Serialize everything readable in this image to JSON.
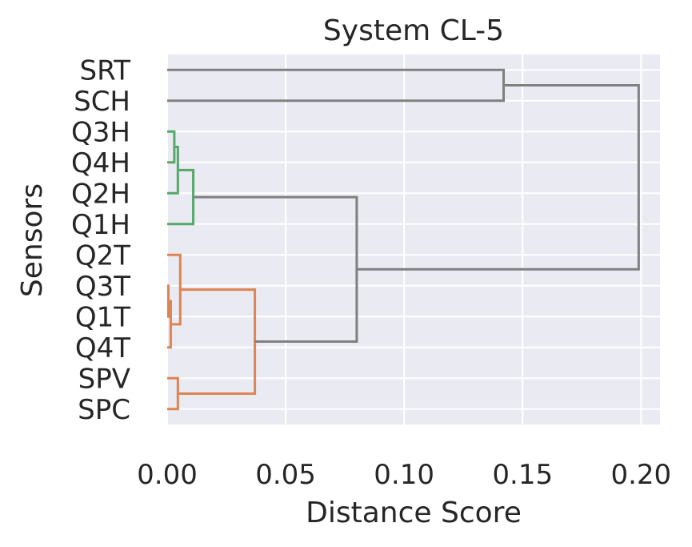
{
  "chart_data": {
    "type": "dendrogram",
    "orientation": "horizontal",
    "title": "System CL-5",
    "xlabel": "Distance Score",
    "ylabel": "Sensors",
    "xlim": [
      0,
      0.208
    ],
    "xticks": [
      "0.00",
      "0.05",
      "0.10",
      "0.15",
      "0.20"
    ],
    "xtick_values": [
      0,
      0.05,
      0.1,
      0.15,
      0.2
    ],
    "grid": true,
    "leaves": [
      "SRT",
      "SCH",
      "Q3H",
      "Q4H",
      "Q2H",
      "Q1H",
      "Q2T",
      "Q3T",
      "Q1T",
      "Q4T",
      "SPV",
      "SPC"
    ],
    "colors": {
      "background": "#eaeaf2",
      "grid": "#ffffff",
      "above_threshold": "#808080",
      "cluster_green": "#55a868",
      "cluster_orange": "#dd8452"
    },
    "merges": [
      {
        "id": "n1",
        "left": "Q3H",
        "right": "Q4H",
        "height": 0.003,
        "color": "cluster_green"
      },
      {
        "id": "n2",
        "left": "n1",
        "right": "Q2H",
        "height": 0.0045,
        "color": "cluster_green"
      },
      {
        "id": "n3",
        "left": "n2",
        "right": "Q1H",
        "height": 0.011,
        "color": "cluster_green"
      },
      {
        "id": "n4",
        "left": "Q3T",
        "right": "Q1T",
        "height": 0.0005,
        "color": "cluster_orange"
      },
      {
        "id": "n5",
        "left": "n4",
        "right": "Q4T",
        "height": 0.0015,
        "color": "cluster_orange"
      },
      {
        "id": "n6",
        "left": "Q2T",
        "right": "n5",
        "height": 0.0055,
        "color": "cluster_orange"
      },
      {
        "id": "n7",
        "left": "SPV",
        "right": "SPC",
        "height": 0.0045,
        "color": "cluster_orange"
      },
      {
        "id": "n8",
        "left": "n6",
        "right": "n7",
        "height": 0.037,
        "color": "cluster_orange"
      },
      {
        "id": "n9",
        "left": "n3",
        "right": "n8",
        "height": 0.08,
        "color": "above_threshold"
      },
      {
        "id": "n10",
        "left": "SRT",
        "right": "SCH",
        "height": 0.142,
        "color": "above_threshold"
      },
      {
        "id": "n11",
        "left": "n10",
        "right": "n9",
        "height": 0.199,
        "color": "above_threshold"
      }
    ]
  }
}
